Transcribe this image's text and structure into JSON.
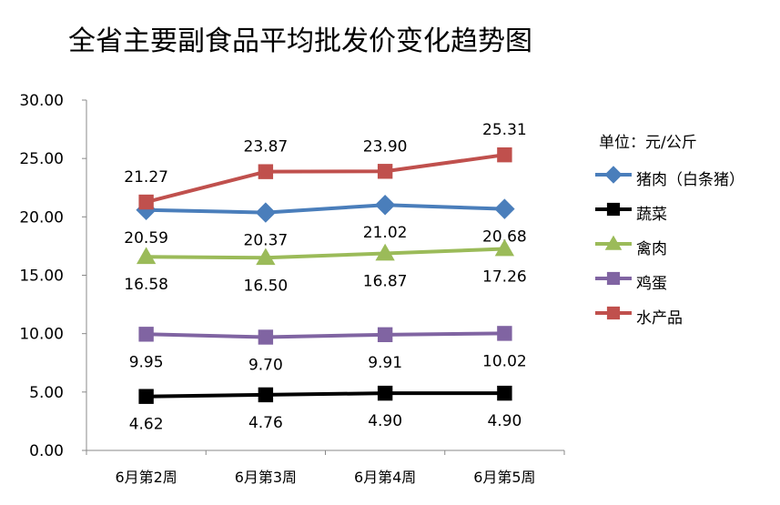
{
  "title": "全省主要副食品平均批发价变化趋势图",
  "unit_label": "单位：元/公斤",
  "chart_data": {
    "type": "line",
    "title": "全省主要副食品平均批发价变化趋势图",
    "categories": [
      "6月第2周",
      "6月第3周",
      "6月第4周",
      "6月第5周"
    ],
    "ylim": [
      0,
      30
    ],
    "yticks": [
      "0.00",
      "5.00",
      "10.00",
      "15.00",
      "20.00",
      "25.00",
      "30.00"
    ],
    "grid": false,
    "legend_position": "right",
    "series": [
      {
        "name": "猪肉（白条猪）",
        "values": [
          20.59,
          20.37,
          21.02,
          20.68
        ],
        "labels": [
          "20.59",
          "20.37",
          "21.02",
          "20.68"
        ],
        "color": "#4a7ebb",
        "marker": "diamond",
        "label_pos": "below"
      },
      {
        "name": "蔬菜",
        "values": [
          4.62,
          4.76,
          4.9,
          4.9
        ],
        "labels": [
          "4.62",
          "4.76",
          "4.90",
          "4.90"
        ],
        "color": "#000000",
        "marker": "square",
        "label_pos": "below"
      },
      {
        "name": "禽肉",
        "values": [
          16.58,
          16.5,
          16.87,
          17.26
        ],
        "labels": [
          "16.58",
          "16.50",
          "16.87",
          "17.26"
        ],
        "color": "#9bbb59",
        "marker": "triangle",
        "label_pos": "below"
      },
      {
        "name": "鸡蛋",
        "values": [
          9.95,
          9.7,
          9.91,
          10.02
        ],
        "labels": [
          "9.95",
          "9.70",
          "9.91",
          "10.02"
        ],
        "color": "#8064a2",
        "marker": "square",
        "label_pos": "below"
      },
      {
        "name": "水产品",
        "values": [
          21.27,
          23.87,
          23.9,
          25.31
        ],
        "labels": [
          "21.27",
          "23.87",
          "23.90",
          "25.31"
        ],
        "color": "#c0504d",
        "marker": "square",
        "label_pos": "above"
      }
    ]
  }
}
